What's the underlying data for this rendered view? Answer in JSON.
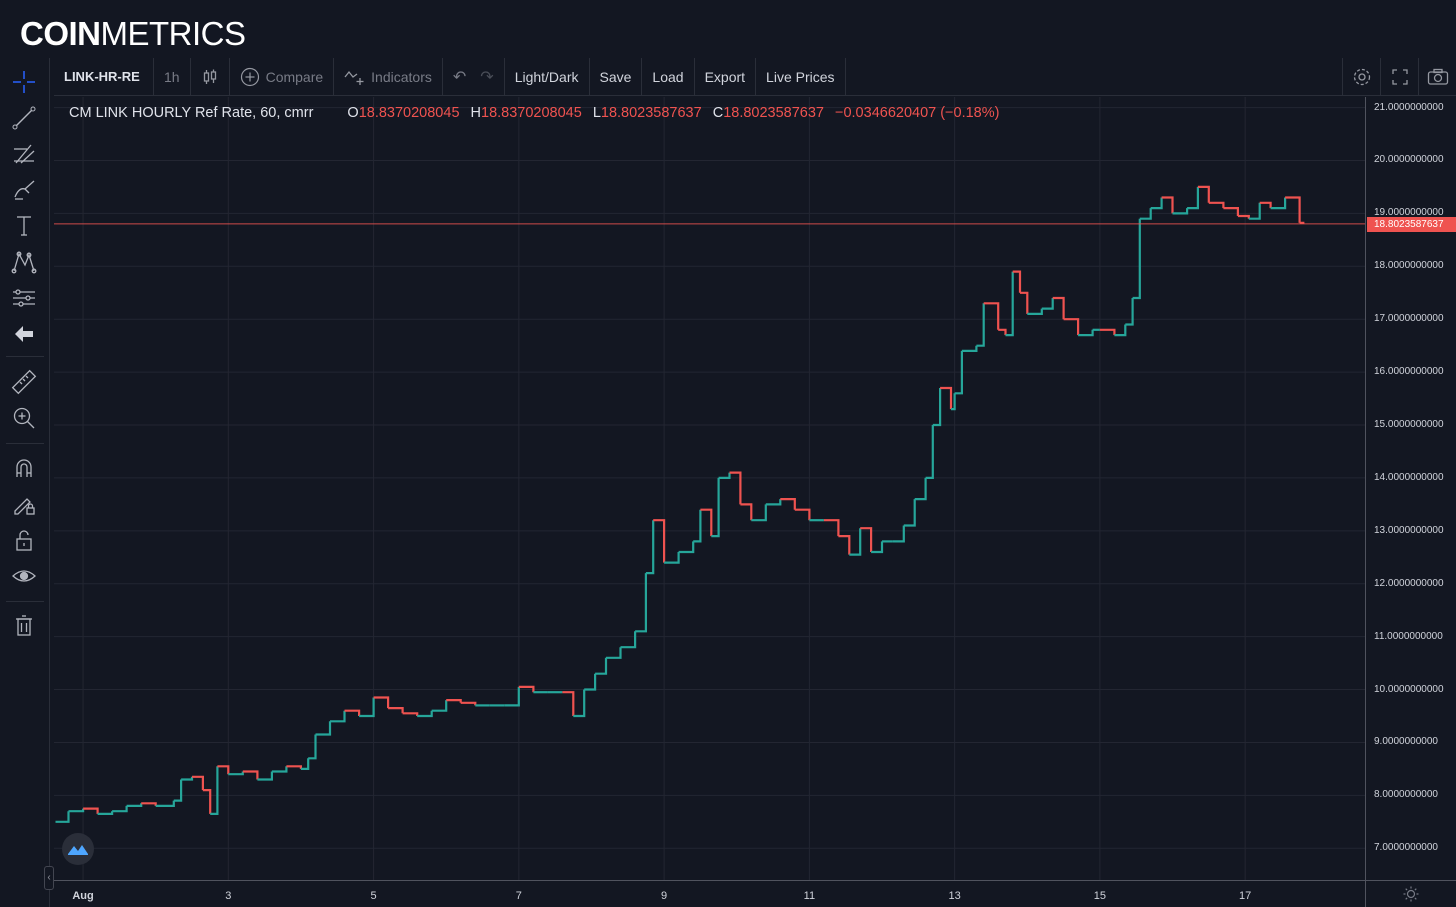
{
  "brand": {
    "bold": "COIN",
    "light": "METRICS"
  },
  "toolbar": {
    "symbol": "LINK-HR-RE",
    "interval": "1h",
    "compare_label": "Compare",
    "indicators_label": "Indicators",
    "theme_label": "Light/Dark",
    "save_label": "Save",
    "load_label": "Load",
    "export_label": "Export",
    "live_prices_label": "Live Prices"
  },
  "legend": {
    "title": "CM LINK HOURLY Ref Rate, 60, cmrr",
    "open_key": "O",
    "open": "18.8370208045",
    "high_key": "H",
    "high": "18.8370208045",
    "low_key": "L",
    "low": "18.8023587637",
    "close_key": "C",
    "close": "18.8023587637",
    "change": "−0.0346620407 (−0.18%)"
  },
  "last_price_label": "18.8023587637",
  "colors": {
    "up": "#26a69a",
    "down": "#ef5350",
    "background": "#131722",
    "grid": "#232632"
  },
  "left_tools": [
    "crosshair-icon",
    "trend-line-icon",
    "fib-tools-icon",
    "brush-icon",
    "text-icon",
    "pattern-icon",
    "prediction-icon",
    "back-arrow-icon",
    "ruler-icon",
    "zoom-in-icon",
    "magnet-icon",
    "lock-drawing-icon",
    "unlock-icon",
    "eye-icon",
    "trash-icon"
  ],
  "chart_data": {
    "type": "line",
    "title": "CM LINK HOURLY Ref Rate, 60, cmrr",
    "xlabel": "",
    "ylabel": "",
    "x_ticks": [
      "Aug",
      "3",
      "5",
      "7",
      "9",
      "11",
      "13",
      "15",
      "17"
    ],
    "y_ticks": [
      "7.0000000000",
      "8.0000000000",
      "9.0000000000",
      "10.0000000000",
      "11.0000000000",
      "12.0000000000",
      "13.0000000000",
      "14.0000000000",
      "15.0000000000",
      "16.0000000000",
      "17.0000000000",
      "18.0000000000",
      "19.0000000000",
      "20.0000000000",
      "21.0000000000"
    ],
    "ylim": [
      6.4,
      21.2
    ],
    "xlim_days": [
      0.6,
      18.65
    ],
    "grid": true,
    "series": [
      {
        "name": "CM LINK HOURLY Ref Rate",
        "points": [
          [
            0.62,
            7.5
          ],
          [
            0.8,
            7.7
          ],
          [
            1.0,
            7.75
          ],
          [
            1.2,
            7.65
          ],
          [
            1.4,
            7.7
          ],
          [
            1.6,
            7.8
          ],
          [
            1.8,
            7.85
          ],
          [
            2.0,
            7.8
          ],
          [
            2.25,
            7.9
          ],
          [
            2.35,
            8.3
          ],
          [
            2.5,
            8.35
          ],
          [
            2.65,
            8.1
          ],
          [
            2.75,
            7.65
          ],
          [
            2.85,
            8.55
          ],
          [
            3.0,
            8.4
          ],
          [
            3.2,
            8.45
          ],
          [
            3.4,
            8.3
          ],
          [
            3.6,
            8.45
          ],
          [
            3.8,
            8.55
          ],
          [
            4.0,
            8.5
          ],
          [
            4.1,
            8.7
          ],
          [
            4.2,
            9.15
          ],
          [
            4.4,
            9.4
          ],
          [
            4.6,
            9.6
          ],
          [
            4.8,
            9.5
          ],
          [
            5.0,
            9.85
          ],
          [
            5.2,
            9.65
          ],
          [
            5.4,
            9.55
          ],
          [
            5.6,
            9.5
          ],
          [
            5.8,
            9.6
          ],
          [
            6.0,
            9.8
          ],
          [
            6.2,
            9.75
          ],
          [
            6.4,
            9.7
          ],
          [
            6.6,
            9.7
          ],
          [
            6.8,
            9.7
          ],
          [
            7.0,
            10.05
          ],
          [
            7.2,
            9.95
          ],
          [
            7.4,
            9.95
          ],
          [
            7.6,
            9.95
          ],
          [
            7.75,
            9.5
          ],
          [
            7.9,
            10.0
          ],
          [
            8.05,
            10.3
          ],
          [
            8.2,
            10.6
          ],
          [
            8.4,
            10.8
          ],
          [
            8.6,
            11.1
          ],
          [
            8.75,
            12.2
          ],
          [
            8.85,
            13.2
          ],
          [
            9.0,
            12.4
          ],
          [
            9.2,
            12.6
          ],
          [
            9.4,
            12.8
          ],
          [
            9.5,
            13.4
          ],
          [
            9.65,
            12.9
          ],
          [
            9.75,
            14.0
          ],
          [
            9.9,
            14.1
          ],
          [
            10.05,
            13.5
          ],
          [
            10.2,
            13.2
          ],
          [
            10.4,
            13.5
          ],
          [
            10.6,
            13.6
          ],
          [
            10.8,
            13.4
          ],
          [
            11.0,
            13.2
          ],
          [
            11.2,
            13.2
          ],
          [
            11.4,
            12.9
          ],
          [
            11.55,
            12.55
          ],
          [
            11.7,
            13.05
          ],
          [
            11.85,
            12.6
          ],
          [
            12.0,
            12.8
          ],
          [
            12.15,
            12.8
          ],
          [
            12.3,
            13.1
          ],
          [
            12.45,
            13.6
          ],
          [
            12.6,
            14.0
          ],
          [
            12.7,
            15.0
          ],
          [
            12.8,
            15.7
          ],
          [
            12.95,
            15.3
          ],
          [
            13.0,
            15.6
          ],
          [
            13.1,
            16.4
          ],
          [
            13.3,
            16.5
          ],
          [
            13.4,
            17.3
          ],
          [
            13.6,
            16.8
          ],
          [
            13.7,
            16.7
          ],
          [
            13.8,
            17.9
          ],
          [
            13.9,
            17.5
          ],
          [
            14.0,
            17.1
          ],
          [
            14.2,
            17.2
          ],
          [
            14.35,
            17.4
          ],
          [
            14.5,
            17.0
          ],
          [
            14.7,
            16.7
          ],
          [
            14.9,
            16.8
          ],
          [
            15.0,
            16.8
          ],
          [
            15.2,
            16.7
          ],
          [
            15.35,
            16.9
          ],
          [
            15.45,
            17.4
          ],
          [
            15.55,
            18.9
          ],
          [
            15.7,
            19.1
          ],
          [
            15.85,
            19.3
          ],
          [
            16.0,
            19.0
          ],
          [
            16.2,
            19.1
          ],
          [
            16.35,
            19.5
          ],
          [
            16.5,
            19.2
          ],
          [
            16.7,
            19.1
          ],
          [
            16.9,
            18.95
          ],
          [
            17.05,
            18.9
          ],
          [
            17.2,
            19.2
          ],
          [
            17.35,
            19.1
          ],
          [
            17.55,
            19.3
          ],
          [
            17.75,
            18.82
          ],
          [
            17.8,
            18.8
          ]
        ]
      }
    ]
  }
}
